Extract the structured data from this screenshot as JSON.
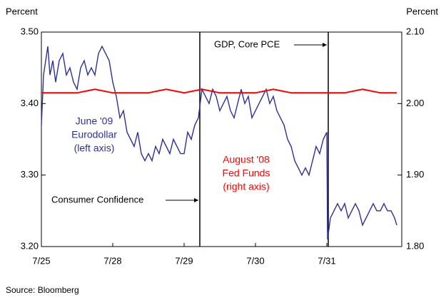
{
  "chart_data": {
    "type": "line",
    "y_label": "Percent",
    "y2_label": "Percent",
    "source": "Source: Bloomberg",
    "xlim": [
      0,
      5.05
    ],
    "xticks": [
      {
        "value": 0,
        "label": "7/25"
      },
      {
        "value": 1,
        "label": "7/28"
      },
      {
        "value": 2,
        "label": "7/29"
      },
      {
        "value": 3,
        "label": "7/30"
      },
      {
        "value": 4,
        "label": "7/31"
      }
    ],
    "ylim": [
      3.2,
      3.5
    ],
    "yticks": [
      {
        "value": 3.2,
        "label": "3.20"
      },
      {
        "value": 3.3,
        "label": "3.30"
      },
      {
        "value": 3.4,
        "label": "3.40"
      },
      {
        "value": 3.5,
        "label": "3.50"
      }
    ],
    "y2lim": [
      1.8,
      2.1
    ],
    "y2ticks": [
      {
        "value": 1.8,
        "label": "1.80"
      },
      {
        "value": 1.9,
        "label": "1.90"
      },
      {
        "value": 2.0,
        "label": "2.00"
      },
      {
        "value": 2.1,
        "label": "2.10"
      }
    ],
    "series": [
      {
        "name": [
          "June '09",
          "Eurodollar",
          "(left axis)"
        ],
        "color": "#2e3192",
        "x": [
          0,
          0.03,
          0.06,
          0.09,
          0.12,
          0.16,
          0.2,
          0.25,
          0.3,
          0.35,
          0.4,
          0.45,
          0.5,
          0.55,
          0.6,
          0.65,
          0.7,
          0.75,
          0.8,
          0.85,
          0.9,
          0.95,
          1.0,
          1.05,
          1.1,
          1.15,
          1.2,
          1.25,
          1.3,
          1.35,
          1.4,
          1.45,
          1.5,
          1.55,
          1.6,
          1.65,
          1.7,
          1.75,
          1.8,
          1.85,
          1.9,
          1.95,
          2.0,
          2.05,
          2.1,
          2.15,
          2.2,
          2.25,
          2.3,
          2.35,
          2.4,
          2.45,
          2.5,
          2.55,
          2.6,
          2.65,
          2.7,
          2.75,
          2.8,
          2.85,
          2.9,
          2.95,
          3.0,
          3.05,
          3.1,
          3.15,
          3.2,
          3.25,
          3.3,
          3.35,
          3.4,
          3.45,
          3.5,
          3.55,
          3.6,
          3.65,
          3.7,
          3.75,
          3.8,
          3.85,
          3.9,
          3.95,
          4.0,
          4.01,
          4.05,
          4.1,
          4.15,
          4.2,
          4.25,
          4.3,
          4.35,
          4.4,
          4.45,
          4.5,
          4.55,
          4.6,
          4.65,
          4.7,
          4.75,
          4.8,
          4.85,
          4.9,
          4.95,
          4.98
        ],
        "values": [
          3.37,
          3.44,
          3.46,
          3.48,
          3.44,
          3.46,
          3.43,
          3.46,
          3.47,
          3.44,
          3.45,
          3.43,
          3.42,
          3.45,
          3.46,
          3.44,
          3.45,
          3.44,
          3.47,
          3.48,
          3.47,
          3.46,
          3.43,
          3.41,
          3.38,
          3.39,
          3.36,
          3.35,
          3.34,
          3.36,
          3.33,
          3.32,
          3.33,
          3.32,
          3.34,
          3.33,
          3.35,
          3.34,
          3.33,
          3.35,
          3.34,
          3.33,
          3.33,
          3.36,
          3.35,
          3.37,
          3.38,
          3.42,
          3.41,
          3.4,
          3.42,
          3.41,
          3.39,
          3.4,
          3.41,
          3.39,
          3.38,
          3.4,
          3.42,
          3.4,
          3.41,
          3.38,
          3.39,
          3.4,
          3.41,
          3.42,
          3.4,
          3.41,
          3.39,
          3.38,
          3.37,
          3.35,
          3.34,
          3.32,
          3.31,
          3.3,
          3.31,
          3.3,
          3.32,
          3.34,
          3.33,
          3.35,
          3.36,
          3.21,
          3.24,
          3.25,
          3.26,
          3.25,
          3.26,
          3.24,
          3.25,
          3.26,
          3.25,
          3.23,
          3.24,
          3.25,
          3.26,
          3.25,
          3.25,
          3.26,
          3.25,
          3.25,
          3.24,
          3.23
        ]
      },
      {
        "name": [
          "August '08",
          "Fed Funds",
          "(right axis)"
        ],
        "color": "#ff0000",
        "axis": "y2",
        "x": [
          0,
          0.25,
          0.5,
          0.75,
          1.0,
          1.25,
          1.5,
          1.75,
          2.0,
          2.25,
          2.5,
          2.75,
          3.0,
          3.25,
          3.5,
          3.75,
          4.0,
          4.25,
          4.5,
          4.75,
          4.98
        ],
        "values": [
          2.015,
          2.015,
          2.015,
          2.02,
          2.015,
          2.015,
          2.015,
          2.02,
          2.015,
          2.02,
          2.015,
          2.015,
          2.015,
          2.02,
          2.015,
          2.015,
          2.015,
          2.015,
          2.02,
          2.015,
          2.015
        ]
      }
    ],
    "events": [
      {
        "label": "Consumer Confidence",
        "x": 2.22
      },
      {
        "label": "GDP, Core PCE",
        "x": 4.02
      }
    ]
  }
}
